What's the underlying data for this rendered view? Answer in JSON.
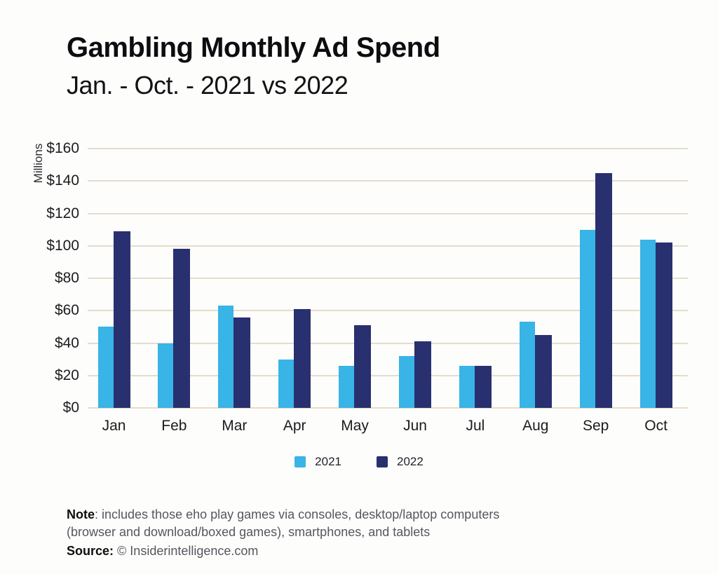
{
  "header": {
    "title": "Gambling Monthly Ad Spend",
    "subtitle": "Jan. - Oct. - 2021 vs 2022"
  },
  "chart_data": {
    "type": "bar",
    "title": "Gambling Monthly Ad Spend",
    "subtitle": "Jan. - Oct. - 2021 vs 2022",
    "xlabel": "",
    "ylabel": "Millions",
    "ylim": [
      0,
      160
    ],
    "ytick_step": 20,
    "ytick_prefix": "$",
    "grid": true,
    "legend_position": "bottom",
    "categories": [
      "Jan",
      "Feb",
      "Mar",
      "Apr",
      "May",
      "Jun",
      "Jul",
      "Aug",
      "Sep",
      "Oct"
    ],
    "series": [
      {
        "name": "2021",
        "color": "#38b4e7",
        "values": [
          50,
          40,
          63,
          30,
          26,
          32,
          26,
          53,
          110,
          104
        ]
      },
      {
        "name": "2022",
        "color": "#29306f",
        "values": [
          109,
          98,
          56,
          61,
          51,
          41,
          26,
          45,
          145,
          102
        ]
      }
    ],
    "colors": {
      "gridline": "#e5dccd",
      "series_2021": "#38b4e7",
      "series_2022": "#29306f"
    }
  },
  "footer": {
    "note_label": "Note",
    "note_rest": ": includes those eho play games via consoles, desktop/laptop computers (browser and download/boxed games), smartphones, and tablets",
    "source_label": "Source:",
    "source_rest": "© Insiderintelligence.com"
  }
}
